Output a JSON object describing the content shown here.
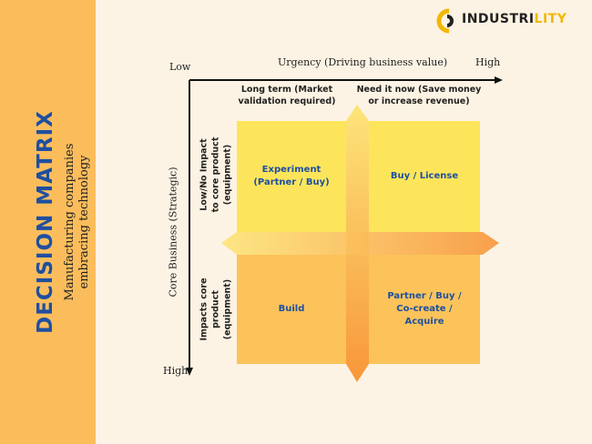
{
  "sidebar": {
    "title": "DECISION MATRIX",
    "subtitle": "Manufacturing companies embracing technology"
  },
  "logo": {
    "text_a": "INDUSTRI",
    "text_b": "LITY"
  },
  "axes": {
    "x_label": "Urgency (Driving business value)",
    "x_low": "Low",
    "x_high": "High",
    "y_label": "Core Business (Strategic)",
    "y_high": "High"
  },
  "columns": [
    "Long term (Market validation required)",
    "Need it now (Save money or increase revenue)"
  ],
  "rows": [
    "Low/No Impact to core product (equipment)",
    "Impacts core product (equipment)"
  ],
  "cells": [
    [
      "Experiment (Partner / Buy)",
      "Buy / License"
    ],
    [
      "Build",
      "Partner / Buy / Co-create / Acquire"
    ]
  ]
}
